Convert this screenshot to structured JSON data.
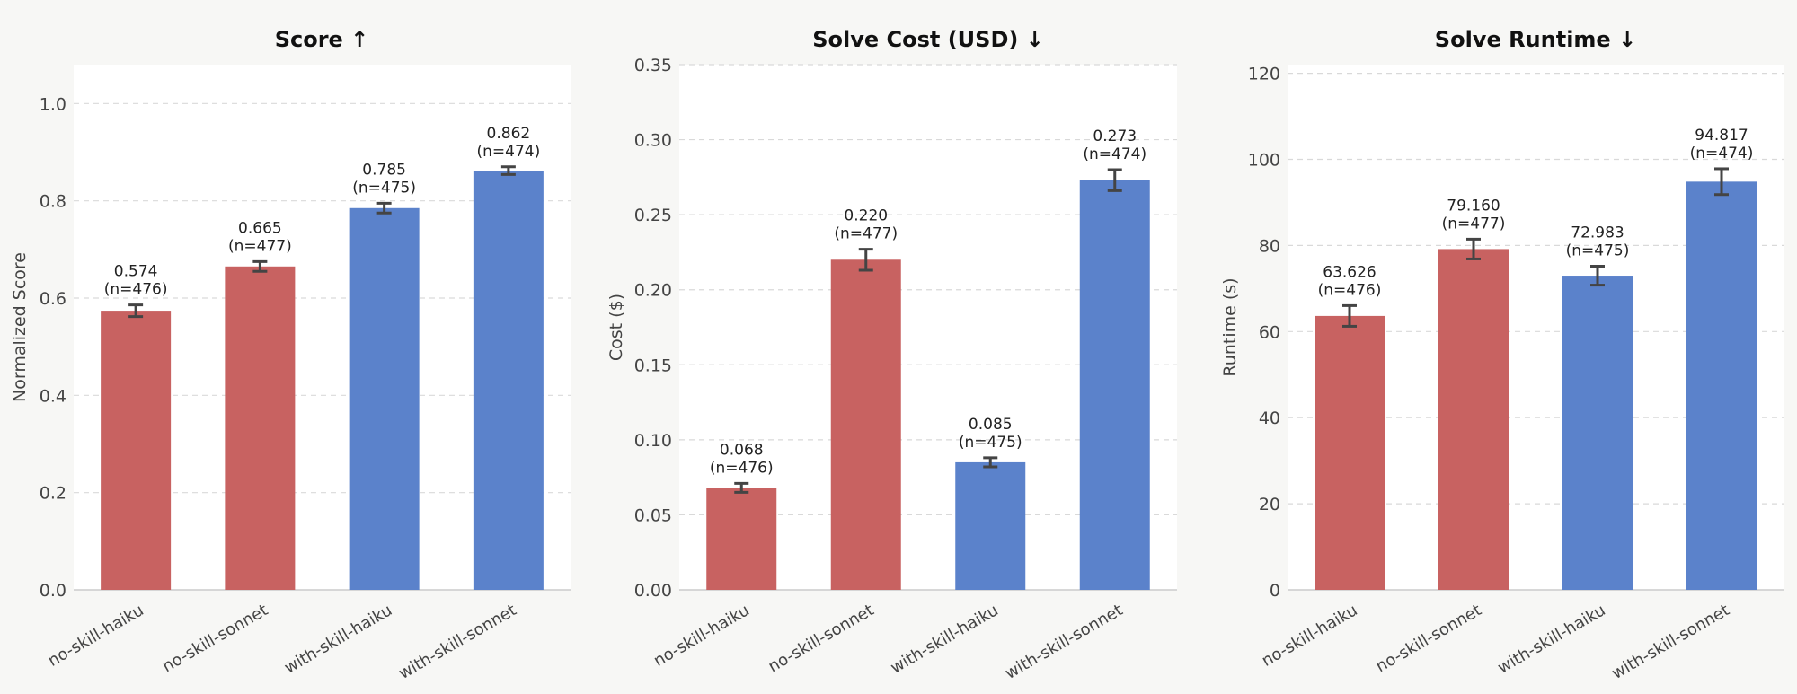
{
  "colors": {
    "no_skill": "#c86261",
    "with_skill": "#5b82cb",
    "plot_bg": "#ffffff",
    "page_bg": "#f7f7f5"
  },
  "chart_data": [
    {
      "type": "bar",
      "title": "Score ↑",
      "ylabel": "Normalized Score",
      "xlabel": "",
      "ylim": [
        0,
        1.08
      ],
      "yticks": [
        0.0,
        0.2,
        0.4,
        0.6,
        0.8,
        1.0
      ],
      "ytick_labels": [
        "0.0",
        "0.2",
        "0.4",
        "0.6",
        "0.8",
        "1.0"
      ],
      "grid": true,
      "categories": [
        "no-skill-haiku",
        "no-skill-sonnet",
        "with-skill-haiku",
        "with-skill-sonnet"
      ],
      "values": [
        0.574,
        0.665,
        0.785,
        0.862
      ],
      "errors": [
        0.012,
        0.01,
        0.01,
        0.008
      ],
      "value_labels": [
        "0.574",
        "0.665",
        "0.785",
        "0.862"
      ],
      "n_labels": [
        "(n=476)",
        "(n=477)",
        "(n=475)",
        "(n=474)"
      ],
      "bar_colors": [
        "no_skill",
        "no_skill",
        "with_skill",
        "with_skill"
      ]
    },
    {
      "type": "bar",
      "title": "Solve Cost (USD) ↓",
      "ylabel": "Cost ($)",
      "xlabel": "",
      "ylim": [
        0,
        0.35
      ],
      "yticks": [
        0.0,
        0.05,
        0.1,
        0.15,
        0.2,
        0.25,
        0.3,
        0.35
      ],
      "ytick_labels": [
        "0.00",
        "0.05",
        "0.10",
        "0.15",
        "0.20",
        "0.25",
        "0.30",
        "0.35"
      ],
      "grid": true,
      "categories": [
        "no-skill-haiku",
        "no-skill-sonnet",
        "with-skill-haiku",
        "with-skill-sonnet"
      ],
      "values": [
        0.068,
        0.22,
        0.085,
        0.273
      ],
      "errors": [
        0.003,
        0.007,
        0.003,
        0.007
      ],
      "value_labels": [
        "0.068",
        "0.220",
        "0.085",
        "0.273"
      ],
      "n_labels": [
        "(n=476)",
        "(n=477)",
        "(n=475)",
        "(n=474)"
      ],
      "bar_colors": [
        "no_skill",
        "no_skill",
        "with_skill",
        "with_skill"
      ]
    },
    {
      "type": "bar",
      "title": "Solve Runtime ↓",
      "ylabel": "Runtime (s)",
      "xlabel": "",
      "ylim": [
        0,
        122
      ],
      "yticks": [
        0,
        20,
        40,
        60,
        80,
        100,
        120
      ],
      "ytick_labels": [
        "0",
        "20",
        "40",
        "60",
        "80",
        "100",
        "120"
      ],
      "grid": true,
      "categories": [
        "no-skill-haiku",
        "no-skill-sonnet",
        "with-skill-haiku",
        "with-skill-sonnet"
      ],
      "values": [
        63.626,
        79.16,
        72.983,
        94.817
      ],
      "errors": [
        2.4,
        2.3,
        2.2,
        3.0
      ],
      "value_labels": [
        "63.626",
        "79.160",
        "72.983",
        "94.817"
      ],
      "n_labels": [
        "(n=476)",
        "(n=477)",
        "(n=475)",
        "(n=474)"
      ],
      "bar_colors": [
        "no_skill",
        "no_skill",
        "with_skill",
        "with_skill"
      ]
    }
  ]
}
